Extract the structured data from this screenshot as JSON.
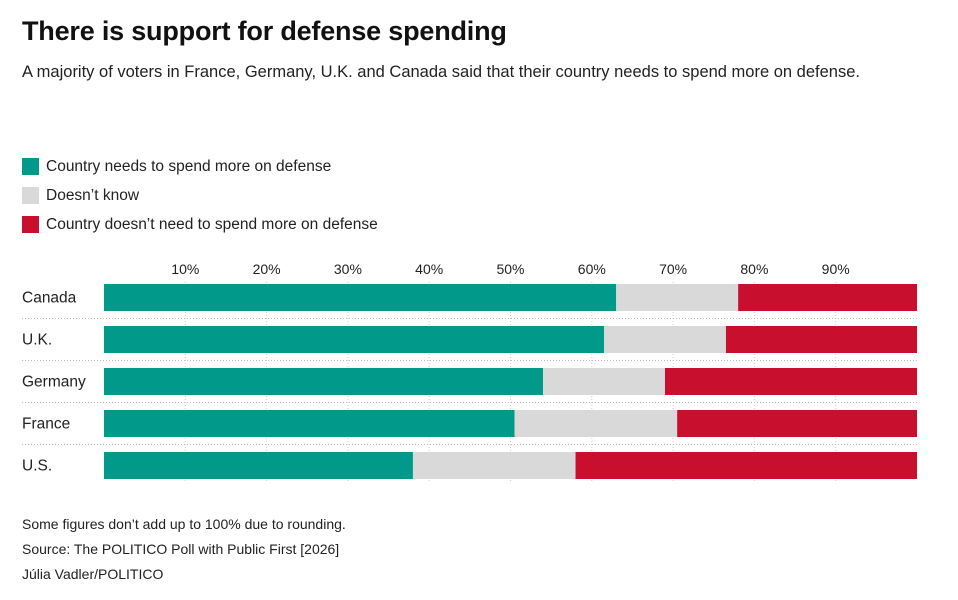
{
  "title": "There is support for defense spending",
  "subtitle": "A majority of voters in France, Germany, U.K. and Canada said that their country needs to spend more on defense.",
  "legend": [
    {
      "label": "Country needs to spend more on defense",
      "color": "#00998a"
    },
    {
      "label": "Doesn’t know",
      "color": "#d9d9d9"
    },
    {
      "label": "Country doesn’t need to spend more on defense",
      "color": "#c8102e"
    }
  ],
  "footer": {
    "note": "Some figures don’t add up to 100% due to rounding.",
    "source": "Source: The POLITICO Poll with Public First [2026]",
    "credit": "Júlia Vadler/POLITICO"
  },
  "chart_data": {
    "type": "bar",
    "orientation": "horizontal",
    "stacked": true,
    "categories": [
      "Canada",
      "U.K.",
      "Germany",
      "France",
      "U.S."
    ],
    "series": [
      {
        "name": "Country needs to spend more on defense",
        "values": [
          63,
          61.5,
          54,
          50.5,
          38
        ],
        "color": "#00998a"
      },
      {
        "name": "Doesn’t know",
        "values": [
          15,
          15,
          15,
          20,
          20
        ],
        "color": "#d9d9d9"
      },
      {
        "name": "Country doesn’t need to spend more on defense",
        "values": [
          22,
          23.5,
          31,
          29.5,
          42
        ],
        "color": "#c8102e"
      }
    ],
    "xticks": [
      "10%",
      "20%",
      "30%",
      "40%",
      "50%",
      "60%",
      "70%",
      "80%",
      "90%"
    ],
    "xtick_values": [
      10,
      20,
      30,
      40,
      50,
      60,
      70,
      80,
      90
    ],
    "xlim": [
      0,
      100
    ],
    "grid": true,
    "legend_position": "top-left"
  }
}
